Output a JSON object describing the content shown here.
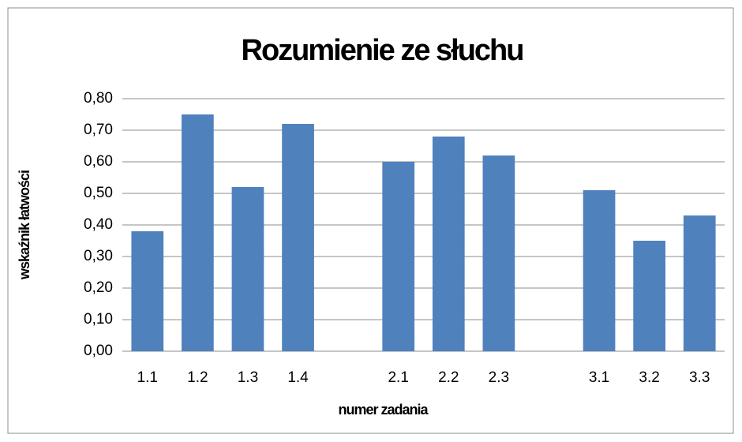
{
  "chart_data": {
    "type": "bar",
    "title": "Rozumienie ze słuchu",
    "x_label": "numer zadania",
    "y_label": "wskaźnik łatwości",
    "categories": [
      "1.1",
      "1.2",
      "1.3",
      "1.4",
      null,
      "2.1",
      "2.2",
      "2.3",
      null,
      "3.1",
      "3.2",
      "3.3"
    ],
    "values": [
      0.38,
      0.75,
      0.52,
      0.72,
      null,
      0.6,
      0.68,
      0.62,
      null,
      0.51,
      0.35,
      0.43
    ],
    "color": "#4f81bd",
    "ylim": [
      0,
      0.8
    ],
    "yticks": [
      {
        "value": 0,
        "label": "0,00"
      },
      {
        "value": 0.1,
        "label": "0,10"
      },
      {
        "value": 0.2,
        "label": "0,20"
      },
      {
        "value": 0.3,
        "label": "0,30"
      },
      {
        "value": 0.4,
        "label": "0,40"
      },
      {
        "value": 0.5,
        "label": "0,50"
      },
      {
        "value": 0.6,
        "label": "0,60"
      },
      {
        "value": 0.7,
        "label": "0,70"
      },
      {
        "value": 0.8,
        "label": "0,80"
      }
    ],
    "grid": true
  }
}
